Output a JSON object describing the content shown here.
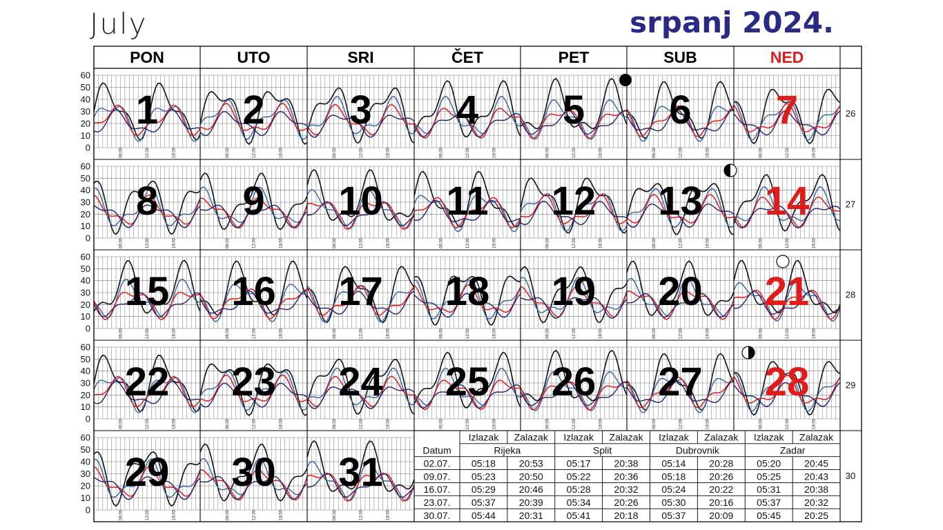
{
  "title_en": "July",
  "title_hr": "srpanj 2024.",
  "weekdays": [
    "PON",
    "UTO",
    "SRI",
    "ČET",
    "PET",
    "SUB",
    "NED"
  ],
  "weekday_colors": [
    "#000000",
    "#000000",
    "#000000",
    "#000000",
    "#000000",
    "#000000",
    "#e01b1b"
  ],
  "y_ticks": [
    "60",
    "50",
    "40",
    "30",
    "20",
    "10",
    "0"
  ],
  "hour_labels": [
    "06:00",
    "12:00",
    "18:00"
  ],
  "weeks": [
    {
      "number": "26",
      "days": [
        "1",
        "2",
        "3",
        "4",
        "5",
        "6",
        "7"
      ]
    },
    {
      "number": "27",
      "days": [
        "8",
        "9",
        "10",
        "11",
        "12",
        "13",
        "14"
      ]
    },
    {
      "number": "28",
      "days": [
        "15",
        "16",
        "17",
        "18",
        "19",
        "20",
        "21"
      ]
    },
    {
      "number": "29",
      "days": [
        "22",
        "23",
        "24",
        "25",
        "26",
        "27",
        "28"
      ]
    },
    {
      "number": "30",
      "days": [
        "29",
        "30",
        "31",
        "",
        "",
        "",
        ""
      ]
    }
  ],
  "moon_phases": [
    {
      "day": "5",
      "phase": "new-moon-icon"
    },
    {
      "day": "13",
      "phase": "first-quarter-icon"
    },
    {
      "day": "21",
      "phase": "full-moon-icon"
    },
    {
      "day": "28",
      "phase": "last-quarter-icon"
    }
  ],
  "colors": {
    "black_line": "#111111",
    "red_line": "#e01b1b",
    "blue_line": "#2f62a8",
    "navy_line": "#23206e",
    "sunday": "#e01b1b",
    "title": "#2a2a86"
  },
  "sun_table": {
    "header": [
      "Izlazak",
      "Zalazak",
      "Izlazak",
      "Zalazak",
      "Izlazak",
      "Zalazak",
      "Izlazak",
      "Zalazak"
    ],
    "date_label": "Datum",
    "cities": [
      "Rijeka",
      "Split",
      "Dubrovnik",
      "Zadar"
    ],
    "rows": [
      {
        "date": "02.07.",
        "times": [
          "05:18",
          "20:53",
          "05:17",
          "20:38",
          "05:14",
          "20:28",
          "05:20",
          "20:45"
        ]
      },
      {
        "date": "09.07.",
        "times": [
          "05:23",
          "20:50",
          "05:22",
          "20:36",
          "05:18",
          "20:26",
          "05:25",
          "20:43"
        ]
      },
      {
        "date": "16.07.",
        "times": [
          "05:29",
          "20:46",
          "05:28",
          "20:32",
          "05:24",
          "20:22",
          "05:31",
          "20:38"
        ]
      },
      {
        "date": "23.07.",
        "times": [
          "05:37",
          "20:39",
          "05:34",
          "20:26",
          "05:30",
          "20:16",
          "05:37",
          "20:32"
        ]
      },
      {
        "date": "30.07.",
        "times": [
          "05:44",
          "20:31",
          "05:41",
          "20:18",
          "05:37",
          "20:09",
          "05:45",
          "20:25"
        ]
      }
    ]
  }
}
